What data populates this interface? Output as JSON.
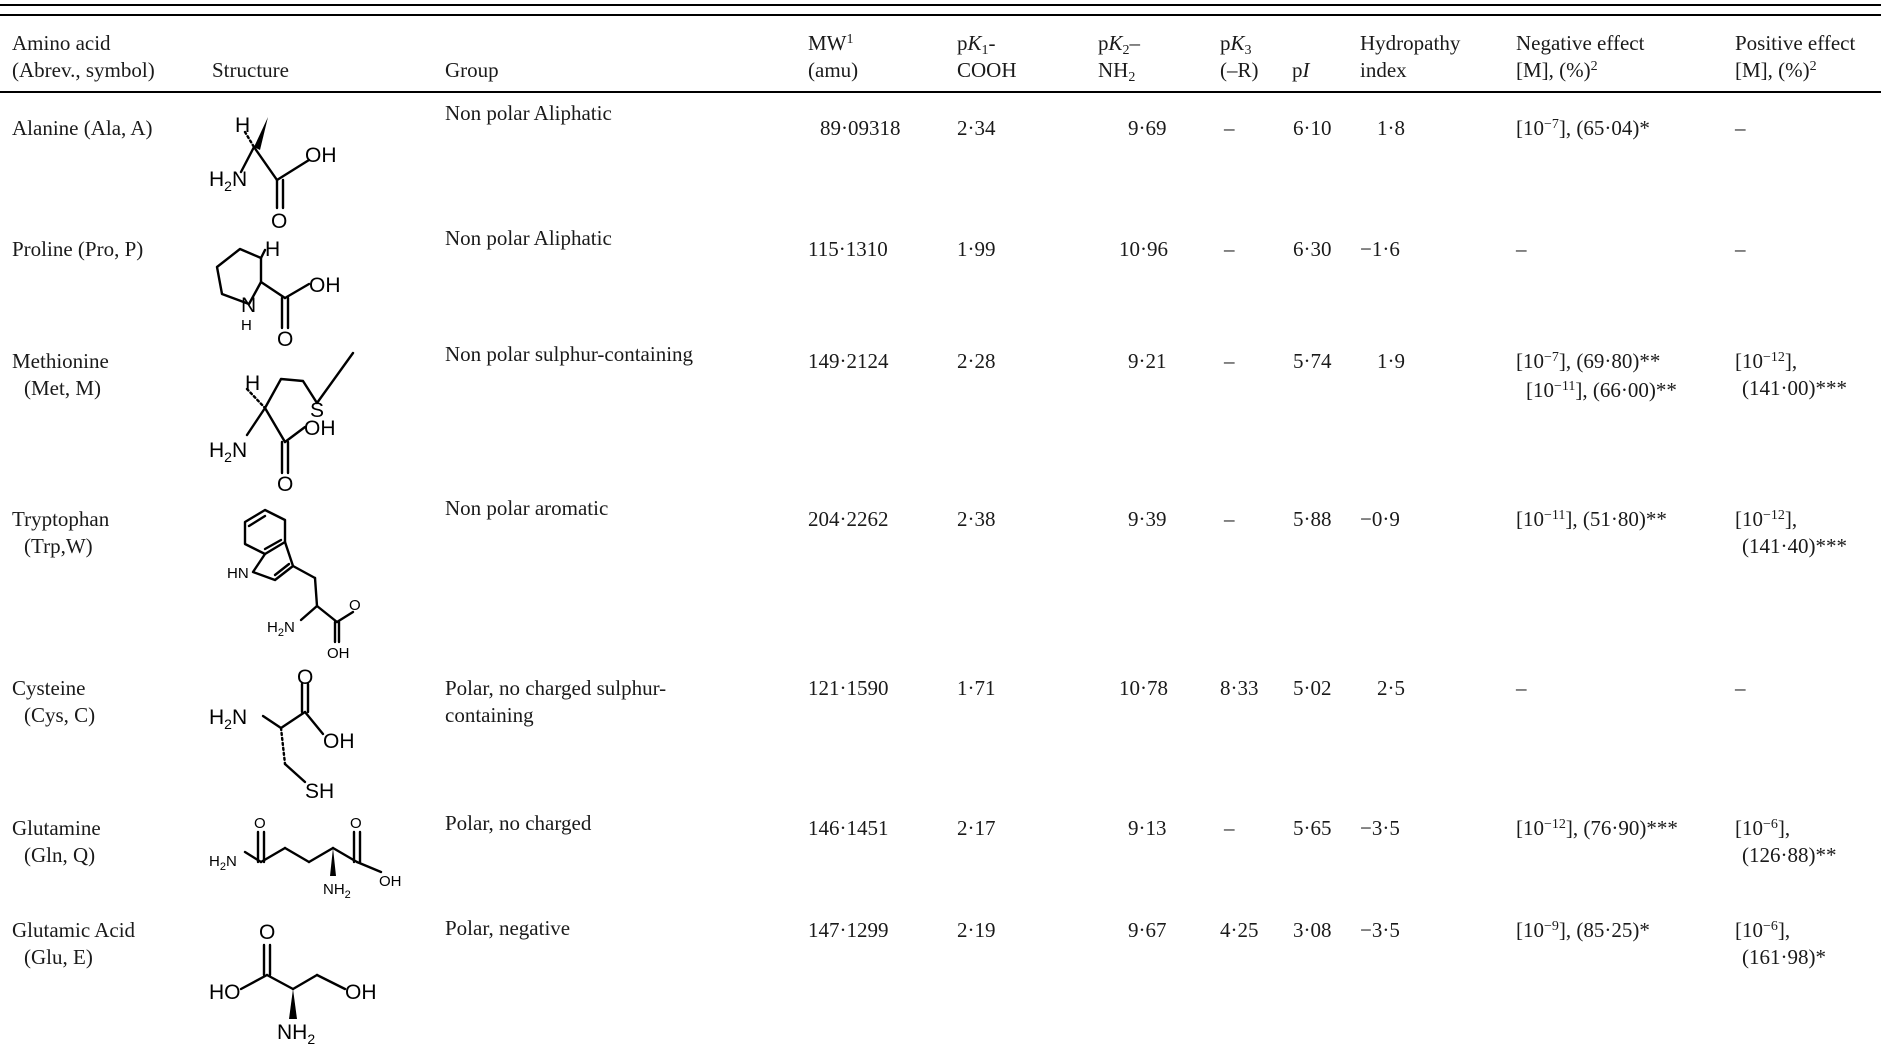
{
  "headers": {
    "amino_acid": [
      "Amino acid",
      "(Abrev., symbol)"
    ],
    "structure": "Structure",
    "group": "Group",
    "mw": {
      "label": "MW",
      "sup": "1",
      "unit": "(amu)"
    },
    "pk1": {
      "p": "p",
      "k": "K",
      "sub": "1",
      "dash": "-",
      "line2": "COOH"
    },
    "pk2": {
      "p": "p",
      "k": "K",
      "sub": "2",
      "dash": "–",
      "line2": "NH",
      "line2_sub": "2"
    },
    "pk3": {
      "p": "p",
      "k": "K",
      "sub": "3",
      "line2": "(–R)"
    },
    "pi": {
      "p": "p",
      "i": "I"
    },
    "hydropathy": [
      "Hydropathy",
      "index"
    ],
    "negative": {
      "line1": "Negative effect",
      "line2": "[M], (%)",
      "sup": "2"
    },
    "positive": {
      "line1": "Positive effect",
      "line2": "[M], (%)",
      "sup": "2"
    }
  },
  "rows": [
    {
      "name": [
        "Alanine (Ala, A)"
      ],
      "structure_icon": "alanine-structure",
      "structure_labels": {
        "h": "H",
        "nh2": "H",
        "nh2_n": "N",
        "nh2_sub": "2",
        "oh": "OH",
        "o": "O"
      },
      "group": [
        "Non polar Aliphatic"
      ],
      "mw": "89·09318",
      "pk1": "2·34",
      "pk2": "9·69",
      "pk3": "–",
      "pi": "6·10",
      "hydro": "1·8",
      "negative": [
        {
          "pre": "[10",
          "sup": "−7",
          "post": "], (65·04)*"
        }
      ],
      "positive": [
        {
          "pre": "–"
        }
      ]
    },
    {
      "name": [
        "Proline (Pro, P)"
      ],
      "structure_icon": "proline-structure",
      "structure_labels": {
        "h": "H",
        "n": "N",
        "nh_h": "H",
        "oh": "OH",
        "o": "O"
      },
      "group": [
        "Non polar Aliphatic"
      ],
      "mw": "115·1310",
      "pk1": "1·99",
      "pk2": "10·96",
      "pk3": "–",
      "pi": "6·30",
      "hydro": "−1·6",
      "negative": [
        {
          "pre": "–"
        }
      ],
      "positive": [
        {
          "pre": "–"
        }
      ]
    },
    {
      "name": [
        "Methionine",
        "(Met, M)"
      ],
      "structure_icon": "methionine-structure",
      "structure_labels": {
        "h": "H",
        "s": "S",
        "nh2": "H",
        "nh2_n": "N",
        "nh2_sub": "2",
        "oh": "OH",
        "o": "O"
      },
      "group": [
        "Non polar sulphur-containing"
      ],
      "mw": "149·2124",
      "pk1": "2·28",
      "pk2": "9·21",
      "pk3": "–",
      "pi": "5·74",
      "hydro": "1·9",
      "negative": [
        {
          "pre": "[10",
          "sup": "−7",
          "post": "], (69·80)**"
        },
        {
          "pre": "[10",
          "sup": "−11",
          "post": "], (66·00)**"
        }
      ],
      "positive": [
        {
          "pre": "[10",
          "sup": "−12",
          "post": "],"
        },
        {
          "pre": "(141·00)***"
        }
      ]
    },
    {
      "name": [
        "Tryptophan",
        "(Trp,W)"
      ],
      "structure_icon": "tryptophan-structure",
      "structure_labels": {
        "hn": "HN",
        "nh2": "H",
        "nh2_n": "N",
        "nh2_sub": "2",
        "o": "O",
        "oh": "OH"
      },
      "group": [
        "Non polar aromatic"
      ],
      "mw": "204·2262",
      "pk1": "2·38",
      "pk2": "9·39",
      "pk3": "–",
      "pi": "5·88",
      "hydro": "−0·9",
      "negative": [
        {
          "pre": "[10",
          "sup": "−11",
          "post": "], (51·80)**"
        }
      ],
      "positive": [
        {
          "pre": "[10",
          "sup": "−12",
          "post": "],"
        },
        {
          "pre": "(141·40)***"
        }
      ]
    },
    {
      "name": [
        "Cysteine",
        "(Cys, C)"
      ],
      "structure_icon": "cysteine-structure",
      "structure_labels": {
        "nh2": "H",
        "nh2_n": "N",
        "nh2_sub": "2",
        "o": "O",
        "oh": "OH",
        "sh": "SH"
      },
      "group": [
        "Polar, no charged sulphur-",
        "containing"
      ],
      "mw": "121·1590",
      "pk1": "1·71",
      "pk2": "10·78",
      "pk3": "8·33",
      "pi": "5·02",
      "hydro": "2·5",
      "negative": [
        {
          "pre": "–"
        }
      ],
      "positive": [
        {
          "pre": "–"
        }
      ]
    },
    {
      "name": [
        "Glutamine",
        "(Gln, Q)"
      ],
      "structure_icon": "glutamine-structure",
      "structure_labels": {
        "h2n": "H",
        "h2n_n": "N",
        "h2n_sub": "2",
        "o1": "O",
        "o2": "O",
        "oh": "OH",
        "nh2": "NH",
        "nh2_sub": "2"
      },
      "group": [
        "Polar, no charged"
      ],
      "mw": "146·1451",
      "pk1": "2·17",
      "pk2": "9·13",
      "pk3": "–",
      "pi": "5·65",
      "hydro": "−3·5",
      "negative": [
        {
          "pre": "[10",
          "sup": "−12",
          "post": "], (76·90)***"
        }
      ],
      "positive": [
        {
          "pre": "[10",
          "sup": "−6",
          "post": "],"
        },
        {
          "pre": "(126·88)**"
        }
      ]
    },
    {
      "name": [
        "Glutamic Acid",
        "(Glu, E)"
      ],
      "structure_icon": "glutamic-acid-structure",
      "structure_labels": {
        "ho": "HO",
        "o": "O",
        "oh": "OH",
        "nh2": "NH",
        "nh2_sub": "2"
      },
      "group": [
        "Polar, negative"
      ],
      "mw": "147·1299",
      "pk1": "2·19",
      "pk2": "9·67",
      "pk3": "4·25",
      "pi": "3·08",
      "hydro": "−3·5",
      "negative": [
        {
          "pre": "[10",
          "sup": "−9",
          "post": "], (85·25)*"
        }
      ],
      "positive": [
        {
          "pre": "[10",
          "sup": "−6",
          "post": "],"
        },
        {
          "pre": "(161·98)*"
        }
      ]
    }
  ]
}
